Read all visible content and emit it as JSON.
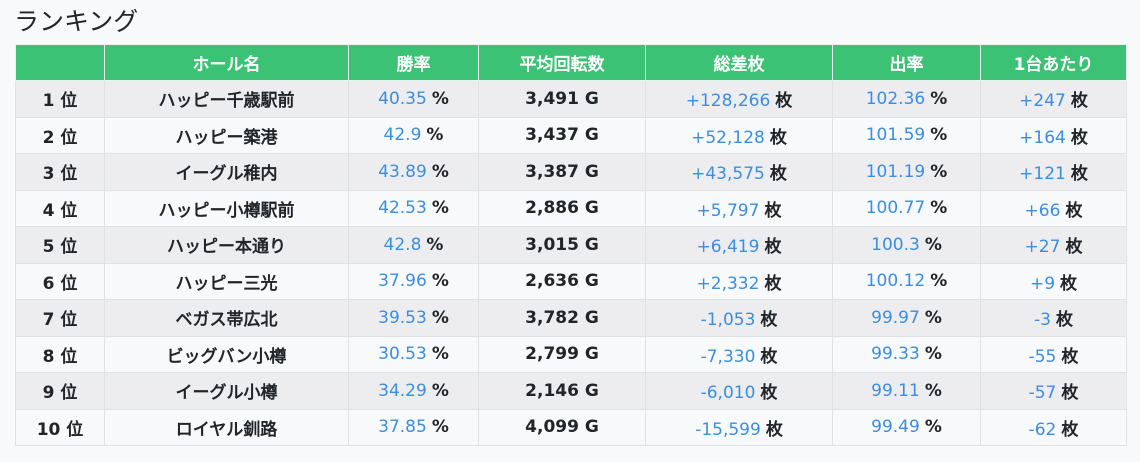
{
  "title": "ランキング",
  "colors": {
    "header_bg": "#3cc274",
    "value_blue": "#3a8ee0"
  },
  "columns": [
    "",
    "ホール名",
    "勝率",
    "平均回転数",
    "総差枚",
    "出率",
    "1台あたり"
  ],
  "rows": [
    {
      "rank": "1 位",
      "hall": "ハッピー千歳駅前",
      "win": "40.35",
      "spins": "3,491 G",
      "diff": "+128,266",
      "rate": "102.36",
      "per": "+247"
    },
    {
      "rank": "2 位",
      "hall": "ハッピー築港",
      "win": "42.9",
      "spins": "3,437 G",
      "diff": "+52,128",
      "rate": "101.59",
      "per": "+164"
    },
    {
      "rank": "3 位",
      "hall": "イーグル稚内",
      "win": "43.89",
      "spins": "3,387 G",
      "diff": "+43,575",
      "rate": "101.19",
      "per": "+121"
    },
    {
      "rank": "4 位",
      "hall": "ハッピー小樽駅前",
      "win": "42.53",
      "spins": "2,886 G",
      "diff": "+5,797",
      "rate": "100.77",
      "per": "+66"
    },
    {
      "rank": "5 位",
      "hall": "ハッピー本通り",
      "win": "42.8",
      "spins": "3,015 G",
      "diff": "+6,419",
      "rate": "100.3",
      "per": "+27"
    },
    {
      "rank": "6 位",
      "hall": "ハッピー三光",
      "win": "37.96",
      "spins": "2,636 G",
      "diff": "+2,332",
      "rate": "100.12",
      "per": "+9"
    },
    {
      "rank": "7 位",
      "hall": "ベガス帯広北",
      "win": "39.53",
      "spins": "3,782 G",
      "diff": "-1,053",
      "rate": "99.97",
      "per": "-3"
    },
    {
      "rank": "8 位",
      "hall": "ビッグバン小樽",
      "win": "30.53",
      "spins": "2,799 G",
      "diff": "-7,330",
      "rate": "99.33",
      "per": "-55"
    },
    {
      "rank": "9 位",
      "hall": "イーグル小樽",
      "win": "34.29",
      "spins": "2,146 G",
      "diff": "-6,010",
      "rate": "99.11",
      "per": "-57"
    },
    {
      "rank": "10 位",
      "hall": "ロイヤル釧路",
      "win": "37.85",
      "spins": "4,099 G",
      "diff": "-15,599",
      "rate": "99.49",
      "per": "-62"
    }
  ],
  "units": {
    "percent": "%",
    "mai": "枚"
  }
}
